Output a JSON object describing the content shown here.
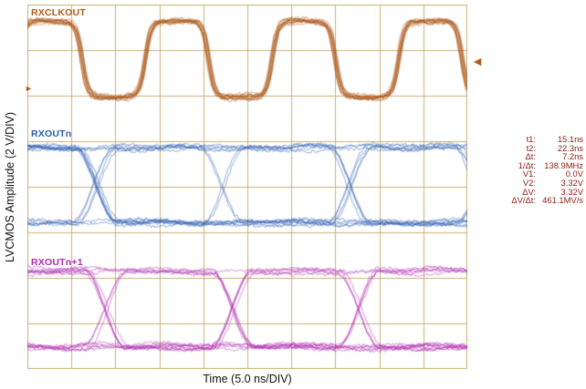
{
  "scope": {
    "bg": "#ffffff",
    "grid_color": "#c8b178"
  },
  "axes": {
    "y_label": "LVCMOS Amplitude (2 V/DIV)",
    "x_label": "Time (5.0 ns/DIV)"
  },
  "icons": {
    "left_marker": "►",
    "right_cursor": "◄"
  },
  "marker_color": "#b05a1b",
  "measurements": {
    "color": "#8b1a12",
    "rows": [
      {
        "label": "t1:",
        "value": "15.1ns"
      },
      {
        "label": "t2:",
        "value": "22.3ns"
      },
      {
        "label": "Δt:",
        "value": "7.2ns"
      },
      {
        "label": "1/Δt:",
        "value": "138.9MHz"
      },
      {
        "label": "V1:",
        "value": "0.0V"
      },
      {
        "label": "V2:",
        "value": "3.32V"
      },
      {
        "label": "ΔV:",
        "value": "3.32V"
      },
      {
        "label": "ΔV/Δt:",
        "value": "461.1MV/s"
      }
    ]
  },
  "chart_data": {
    "type": "line",
    "subtype": "oscilloscope-capture",
    "title": "",
    "xlabel": "Time (5.0 ns/DIV)",
    "ylabel": "LVCMOS Amplitude (2 V/DIV)",
    "x_divisions": 10,
    "y_divisions": 8,
    "time_per_div_ns": 5.0,
    "volts_per_div": 2.0,
    "x_range_ns": [
      0,
      50
    ],
    "grid": true,
    "series": [
      {
        "name": "RXCLKOUT",
        "kind": "clock",
        "color": "#b05a1b",
        "period_ns": 14.4,
        "frequency_MHz": 69.4,
        "first_fall_ns": 6.2,
        "low_V": 0.0,
        "high_V": 3.32
      },
      {
        "name": "RXOUTn",
        "kind": "eye",
        "color": "#2a5cb2",
        "unit_interval_ns": 14.4,
        "low_V": 0.0,
        "high_V": 3.32,
        "crossings_ns": [
          7.8,
          22.2,
          36.6
        ]
      },
      {
        "name": "RXOUTn+1",
        "kind": "eye",
        "color": "#b02ab0",
        "unit_interval_ns": 14.4,
        "low_V": 0.0,
        "high_V": 3.32,
        "crossings_ns": [
          9.0,
          23.4,
          37.8
        ]
      }
    ],
    "measurements": {
      "t1_ns": 15.1,
      "t2_ns": 22.3,
      "dt_ns": 7.2,
      "inv_dt_MHz": 138.9,
      "V1_V": 0.0,
      "V2_V": 3.32,
      "dV_V": 3.32,
      "dV_dt": "461.1MV/s"
    }
  }
}
